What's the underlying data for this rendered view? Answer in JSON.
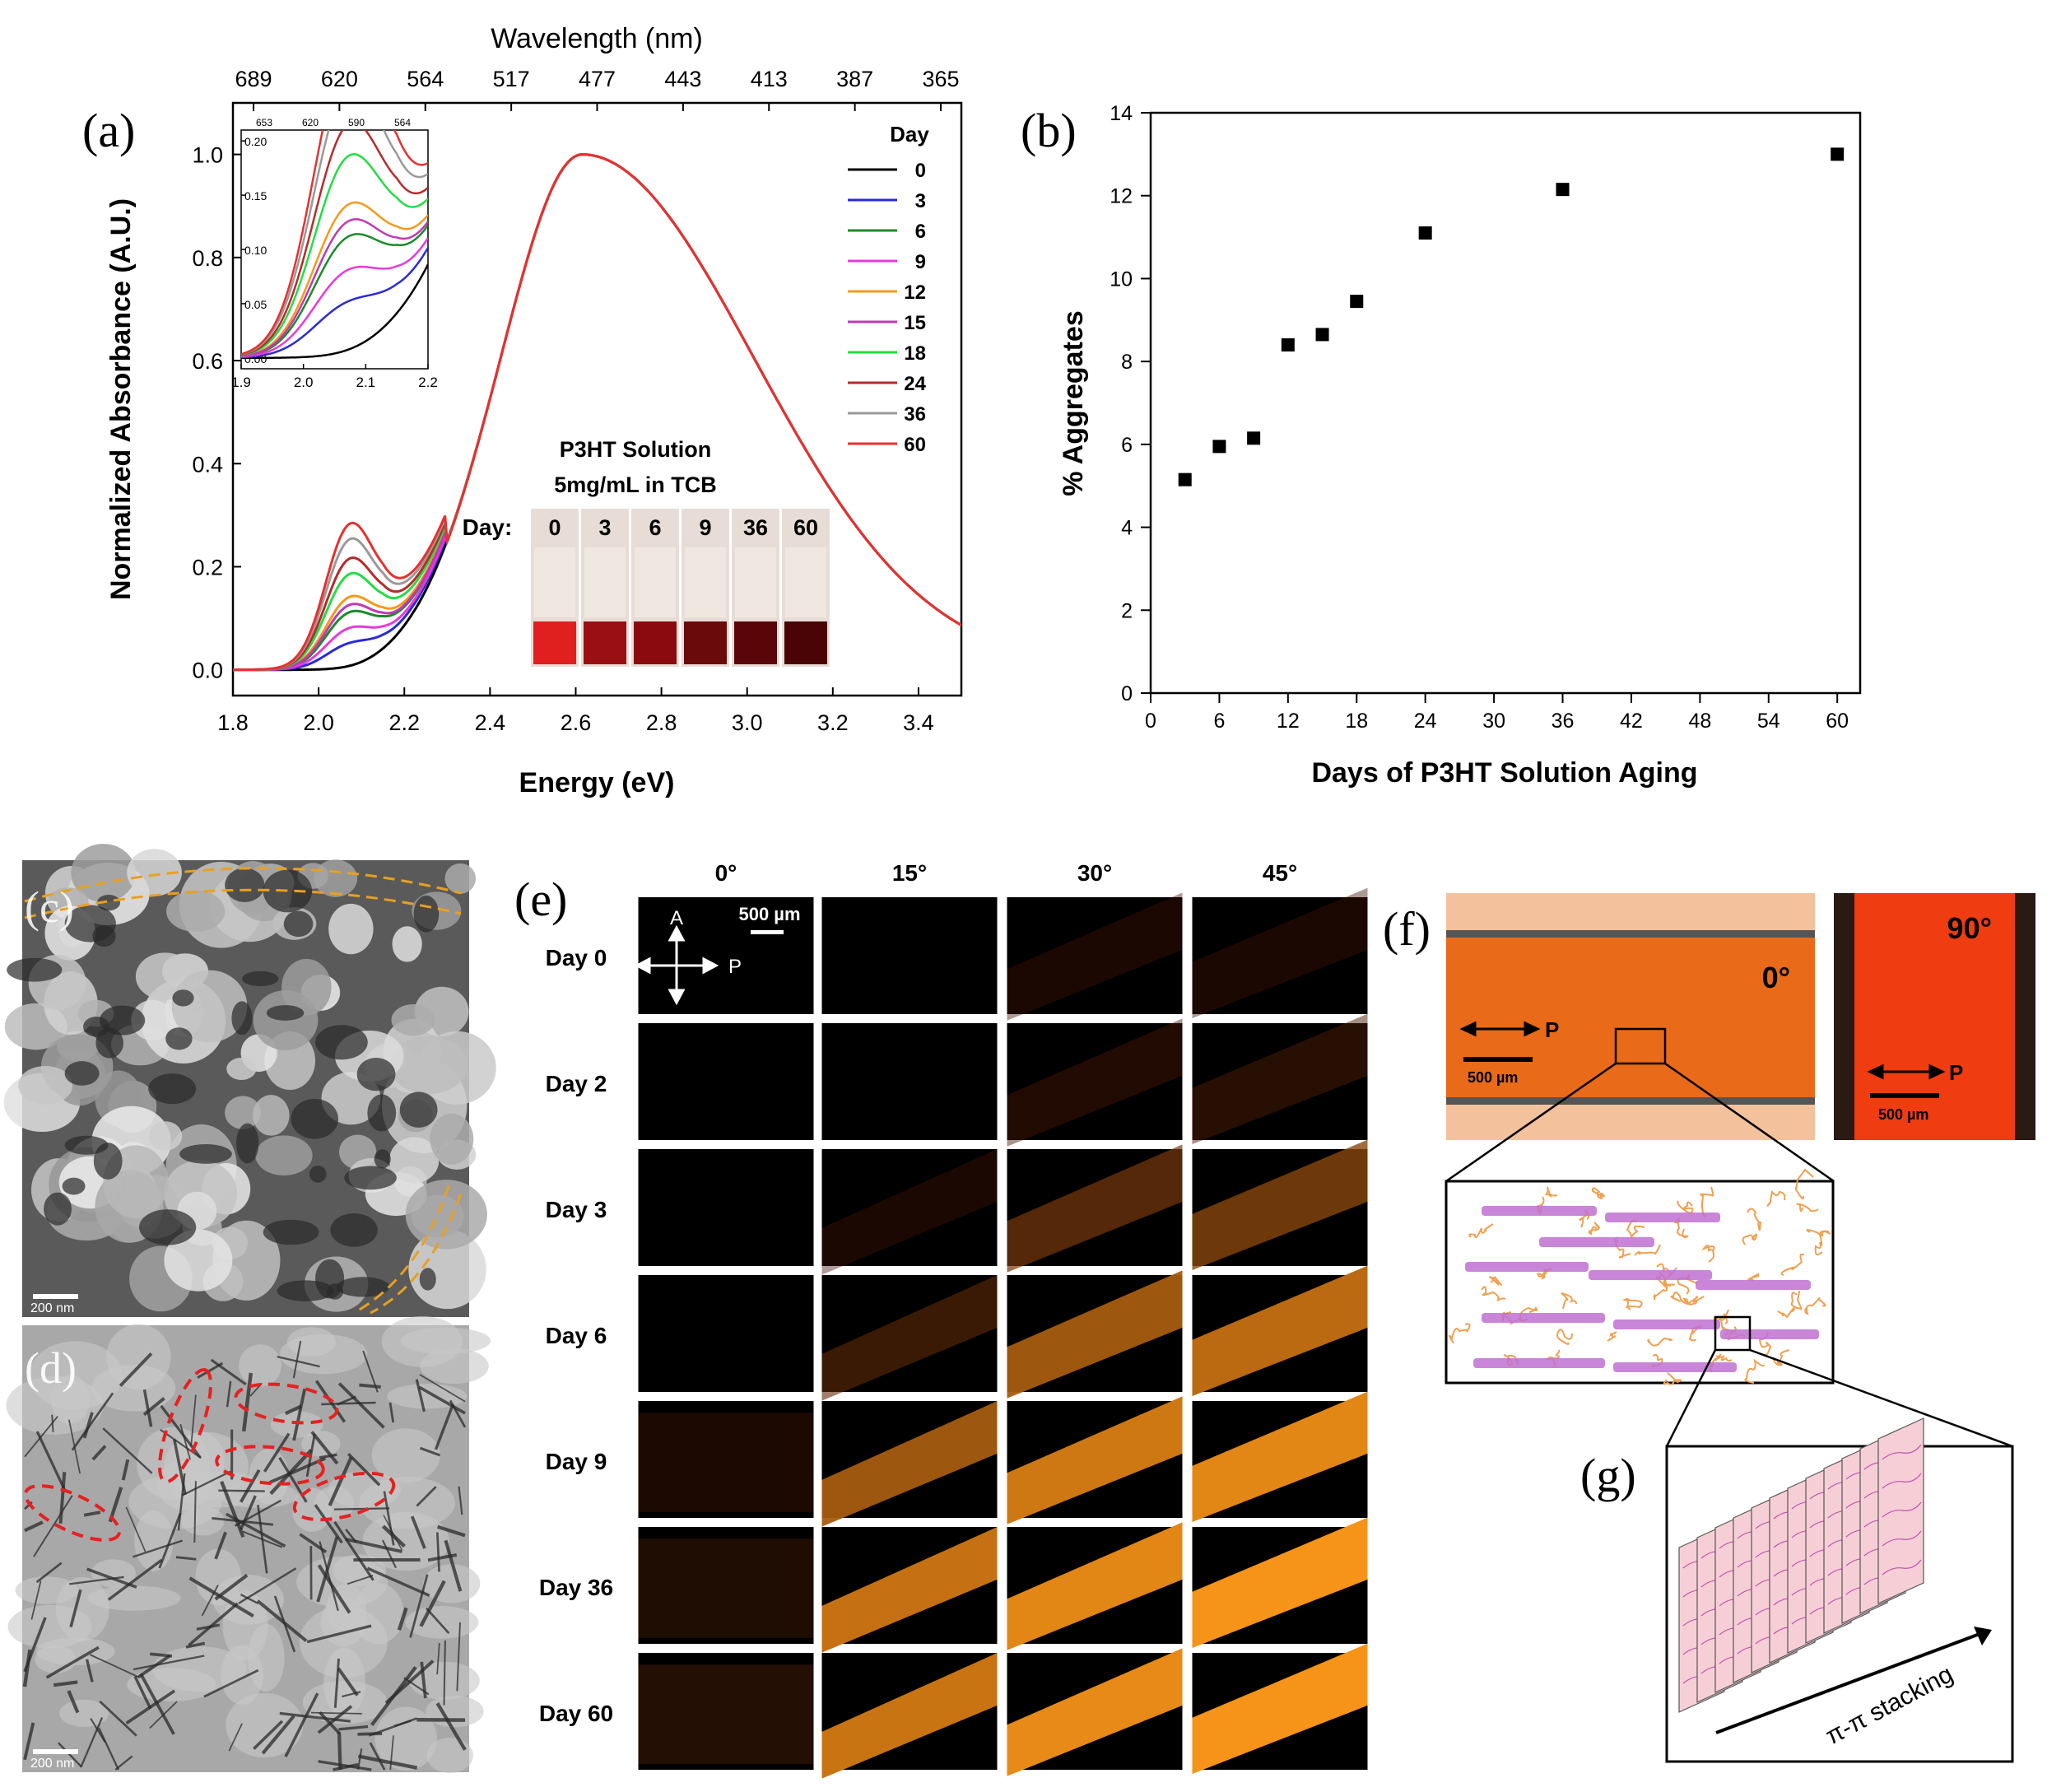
{
  "panel_labels": {
    "a": "(a)",
    "b": "(b)",
    "c": "(c)",
    "d": "(d)",
    "e": "(e)",
    "f": "(f)",
    "g": "(g)"
  },
  "chart_data": [
    {
      "id": "a",
      "type": "line",
      "title": "",
      "xlabel": "Energy (eV)",
      "ylabel": "Normalized Absorbance (A.U.)",
      "x2label": "Wavelength (nm)",
      "xlim": [
        1.8,
        3.5
      ],
      "ylim": [
        -0.05,
        1.1
      ],
      "x_ticks": [
        "1.8",
        "2.0",
        "2.2",
        "2.4",
        "2.6",
        "2.8",
        "3.0",
        "3.2",
        "3.4"
      ],
      "y_ticks": [
        "0.0",
        "0.2",
        "0.4",
        "0.6",
        "0.8",
        "1.0"
      ],
      "x2_ticks": [
        "689",
        "620",
        "564",
        "517",
        "477",
        "443",
        "413",
        "387",
        "365"
      ],
      "legend_title": "Day",
      "series": [
        {
          "name": "0",
          "color": "#000000",
          "shoulder": 0.0,
          "shift": 0.0
        },
        {
          "name": "3",
          "color": "#2a2ad8",
          "shoulder": 0.03,
          "shift": 0.004
        },
        {
          "name": "6",
          "color": "#1a8a2a",
          "shoulder": 0.07,
          "shift": 0.008
        },
        {
          "name": "9",
          "color": "#e83ad8",
          "shoulder": 0.05,
          "shift": 0.01
        },
        {
          "name": "12",
          "color": "#f39a1a",
          "shoulder": 0.09,
          "shift": 0.012
        },
        {
          "name": "15",
          "color": "#c03ab0",
          "shoulder": 0.08,
          "shift": 0.014
        },
        {
          "name": "18",
          "color": "#22dd44",
          "shoulder": 0.12,
          "shift": 0.016
        },
        {
          "name": "24",
          "color": "#b82a2a",
          "shoulder": 0.14,
          "shift": 0.018
        },
        {
          "name": "36",
          "color": "#9a9a9a",
          "shoulder": 0.165,
          "shift": 0.02
        },
        {
          "name": "60",
          "color": "#e83030",
          "shoulder": 0.185,
          "shift": 0.022
        }
      ],
      "inset": {
        "xlim": [
          1.9,
          2.2
        ],
        "ylim": [
          -0.01,
          0.21
        ],
        "x_ticks": [
          "1.9",
          "2.0",
          "2.1",
          "2.2"
        ],
        "y_ticks": [
          "0.00",
          "0.05",
          "0.10",
          "0.15",
          "0.20"
        ],
        "x2_ticks": [
          "653",
          "620",
          "590",
          "564"
        ]
      },
      "photo_inset": {
        "title_line1": "P3HT Solution",
        "title_line2": "5mg/mL in TCB",
        "day_label": "Day:",
        "days": [
          "0",
          "3",
          "6",
          "9",
          "36",
          "60"
        ],
        "colors": [
          "#e0201e",
          "#9a1012",
          "#8a0a10",
          "#6a0a0a",
          "#5a0608",
          "#4a0406"
        ]
      }
    },
    {
      "id": "b",
      "type": "scatter",
      "title": "",
      "xlabel": "Days of P3HT Solution Aging",
      "ylabel": "% Aggregates",
      "xlim": [
        0,
        62
      ],
      "ylim": [
        0,
        14
      ],
      "x_ticks": [
        "0",
        "6",
        "12",
        "18",
        "24",
        "30",
        "36",
        "42",
        "48",
        "54",
        "60"
      ],
      "y_ticks": [
        "0",
        "2",
        "4",
        "6",
        "8",
        "10",
        "12",
        "14"
      ],
      "x": [
        3,
        6,
        9,
        12,
        15,
        18,
        24,
        36,
        60
      ],
      "y": [
        5.15,
        5.95,
        6.15,
        8.4,
        8.65,
        9.45,
        11.1,
        12.15,
        13.0
      ]
    }
  ],
  "panel_c": {
    "scale": "200 nm"
  },
  "panel_d": {
    "scale": "200 nm"
  },
  "panel_e": {
    "angles": [
      "0°",
      "15°",
      "30°",
      "45°"
    ],
    "rows": [
      "Day 0",
      "Day 2",
      "Day 3",
      "Day 6",
      "Day 9",
      "Day 36",
      "Day 60"
    ],
    "scale": "500 µm",
    "analyzer": "A",
    "polarizer": "P",
    "intensity": [
      [
        0.0,
        0.0,
        0.02,
        0.03
      ],
      [
        0.0,
        0.0,
        0.06,
        0.1
      ],
      [
        0.0,
        0.02,
        0.3,
        0.4
      ],
      [
        0.0,
        0.2,
        0.55,
        0.65
      ],
      [
        0.1,
        0.55,
        0.75,
        0.85
      ],
      [
        0.15,
        0.7,
        0.85,
        0.95
      ],
      [
        0.2,
        0.72,
        0.88,
        0.95
      ]
    ]
  },
  "panel_f": {
    "angle_0": "0°",
    "angle_90": "90°",
    "polarizer": "P",
    "scale": "500 µm"
  },
  "panel_g": {
    "stacking": "π-π stacking"
  }
}
